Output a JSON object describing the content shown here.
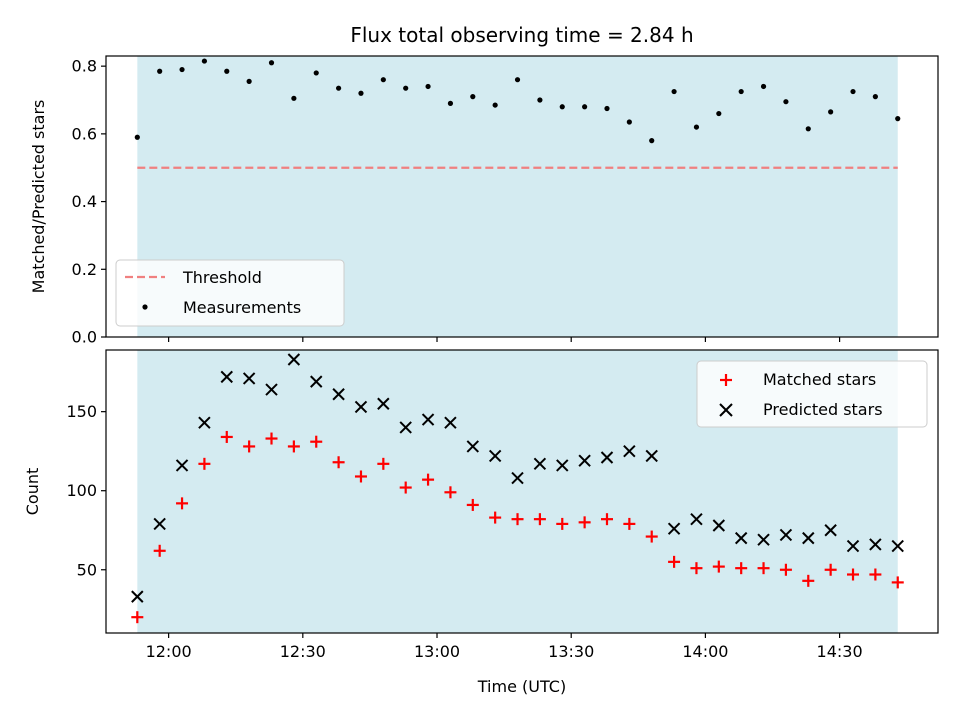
{
  "chart_data": [
    {
      "type": "scatter",
      "title": "Flux total observing time = 2.84 h",
      "xlabel": "",
      "ylabel": "Matched/Predicted stars",
      "ylim": [
        0,
        0.83
      ],
      "yticks": [
        "0.0",
        "0.2",
        "0.4",
        "0.6",
        "0.8"
      ],
      "observing_window": [
        "11:53",
        "14:43"
      ],
      "threshold": 0.5,
      "legend": {
        "position": "lower-left",
        "entries": [
          "Threshold",
          "Measurements"
        ]
      },
      "series": [
        {
          "name": "Measurements",
          "marker": "dot",
          "color": "#000000",
          "x": [
            "11:53",
            "11:58",
            "12:03",
            "12:08",
            "12:13",
            "12:18",
            "12:23",
            "12:28",
            "12:33",
            "12:38",
            "12:43",
            "12:48",
            "12:53",
            "12:58",
            "13:03",
            "13:08",
            "13:13",
            "13:18",
            "13:23",
            "13:28",
            "13:33",
            "13:38",
            "13:43",
            "13:48",
            "13:53",
            "13:58",
            "14:03",
            "14:08",
            "14:13",
            "14:18",
            "14:23",
            "14:28",
            "14:33",
            "14:38",
            "14:43"
          ],
          "y": [
            0.59,
            0.785,
            0.79,
            0.815,
            0.785,
            0.755,
            0.81,
            0.705,
            0.78,
            0.735,
            0.72,
            0.76,
            0.735,
            0.74,
            0.69,
            0.71,
            0.685,
            0.76,
            0.7,
            0.68,
            0.68,
            0.675,
            0.635,
            0.58,
            0.725,
            0.62,
            0.66,
            0.725,
            0.74,
            0.695,
            0.615,
            0.665,
            0.725,
            0.71,
            0.645
          ]
        }
      ],
      "colors": {
        "band": "#d4ebf1",
        "threshold": "#f08080"
      }
    },
    {
      "type": "scatter",
      "title": "",
      "xlabel": "Time (UTC)",
      "ylabel": "Count",
      "xlim": [
        "11:46",
        "14:52"
      ],
      "ylim": [
        10,
        189
      ],
      "xticks": [
        "12:00",
        "12:30",
        "13:00",
        "13:30",
        "14:00",
        "14:30"
      ],
      "yticks": [
        "50",
        "100",
        "150"
      ],
      "observing_window": [
        "11:53",
        "14:43"
      ],
      "legend": {
        "position": "upper-right",
        "entries": [
          "Matched stars",
          "Predicted stars"
        ]
      },
      "series": [
        {
          "name": "Matched stars",
          "marker": "plus",
          "color": "#ff0000",
          "x": [
            "11:53",
            "11:58",
            "12:03",
            "12:08",
            "12:13",
            "12:18",
            "12:23",
            "12:28",
            "12:33",
            "12:38",
            "12:43",
            "12:48",
            "12:53",
            "12:58",
            "13:03",
            "13:08",
            "13:13",
            "13:18",
            "13:23",
            "13:28",
            "13:33",
            "13:38",
            "13:43",
            "13:48",
            "13:53",
            "13:58",
            "14:03",
            "14:08",
            "14:13",
            "14:18",
            "14:23",
            "14:28",
            "14:33",
            "14:38",
            "14:43"
          ],
          "y": [
            20,
            62,
            92,
            117,
            134,
            128,
            133,
            128,
            131,
            118,
            109,
            117,
            102,
            107,
            99,
            91,
            83,
            82,
            82,
            79,
            80,
            82,
            79,
            71,
            55,
            51,
            52,
            51,
            51,
            50,
            43,
            50,
            47,
            47,
            42
          ]
        },
        {
          "name": "Predicted stars",
          "marker": "x",
          "color": "#000000",
          "x": [
            "11:53",
            "11:58",
            "12:03",
            "12:08",
            "12:13",
            "12:18",
            "12:23",
            "12:28",
            "12:33",
            "12:38",
            "12:43",
            "12:48",
            "12:53",
            "12:58",
            "13:03",
            "13:08",
            "13:13",
            "13:18",
            "13:23",
            "13:28",
            "13:33",
            "13:38",
            "13:43",
            "13:48",
            "13:53",
            "13:58",
            "14:03",
            "14:08",
            "14:13",
            "14:18",
            "14:23",
            "14:28",
            "14:33",
            "14:38",
            "14:43"
          ],
          "y": [
            33,
            79,
            116,
            143,
            172,
            171,
            164,
            183,
            169,
            161,
            153,
            155,
            140,
            145,
            143,
            128,
            122,
            108,
            117,
            116,
            119,
            121,
            125,
            122,
            76,
            82,
            78,
            70,
            69,
            72,
            70,
            75,
            65,
            66,
            65
          ]
        }
      ],
      "colors": {
        "band": "#d4ebf1"
      }
    }
  ]
}
